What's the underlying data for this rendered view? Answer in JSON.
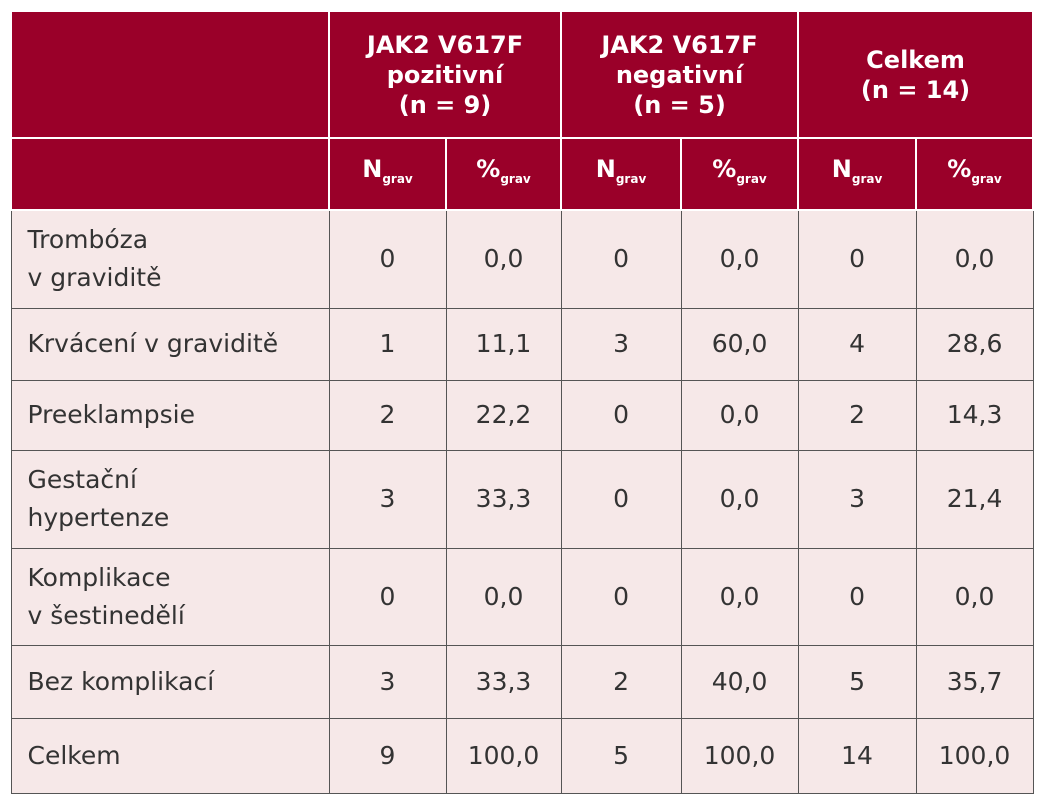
{
  "table": {
    "groups": [
      {
        "lines": [
          "JAK2 V617F",
          "pozitivní",
          "(n = 9)"
        ]
      },
      {
        "lines": [
          "JAK2 V617F",
          "negativní",
          "(n = 5)"
        ]
      },
      {
        "lines": [
          "Celkem",
          "(n = 14)"
        ]
      }
    ],
    "subheaders": [
      {
        "main": "N",
        "sub": "grav"
      },
      {
        "main": "%",
        "sub": "grav"
      },
      {
        "main": "N",
        "sub": "grav"
      },
      {
        "main": "%",
        "sub": "grav"
      },
      {
        "main": "N",
        "sub": "grav"
      },
      {
        "main": "%",
        "sub": "grav"
      }
    ],
    "rows": [
      {
        "label": [
          "Trombóza",
          "v graviditě"
        ],
        "cells": [
          "0",
          "0,0",
          "0",
          "0,0",
          "0",
          "0,0"
        ]
      },
      {
        "label": [
          "Krvácení v graviditě"
        ],
        "cells": [
          "1",
          "11,1",
          "3",
          "60,0",
          "4",
          "28,6"
        ]
      },
      {
        "label": [
          "Preeklampsie"
        ],
        "cells": [
          "2",
          "22,2",
          "0",
          "0,0",
          "2",
          "14,3"
        ]
      },
      {
        "label": [
          "Gestační",
          "hypertenze"
        ],
        "cells": [
          "3",
          "33,3",
          "0",
          "0,0",
          "3",
          "21,4"
        ]
      },
      {
        "label": [
          "Komplikace",
          "v šestinedělí"
        ],
        "cells": [
          "0",
          "0,0",
          "0",
          "0,0",
          "0",
          "0,0"
        ]
      },
      {
        "label": [
          "Bez komplikací"
        ],
        "cells": [
          "3",
          "33,3",
          "2",
          "40,0",
          "5",
          "35,7"
        ]
      },
      {
        "label": [
          "Celkem"
        ],
        "cells": [
          "9",
          "100,0",
          "5",
          "100,0",
          "14",
          "100,0"
        ]
      }
    ]
  }
}
